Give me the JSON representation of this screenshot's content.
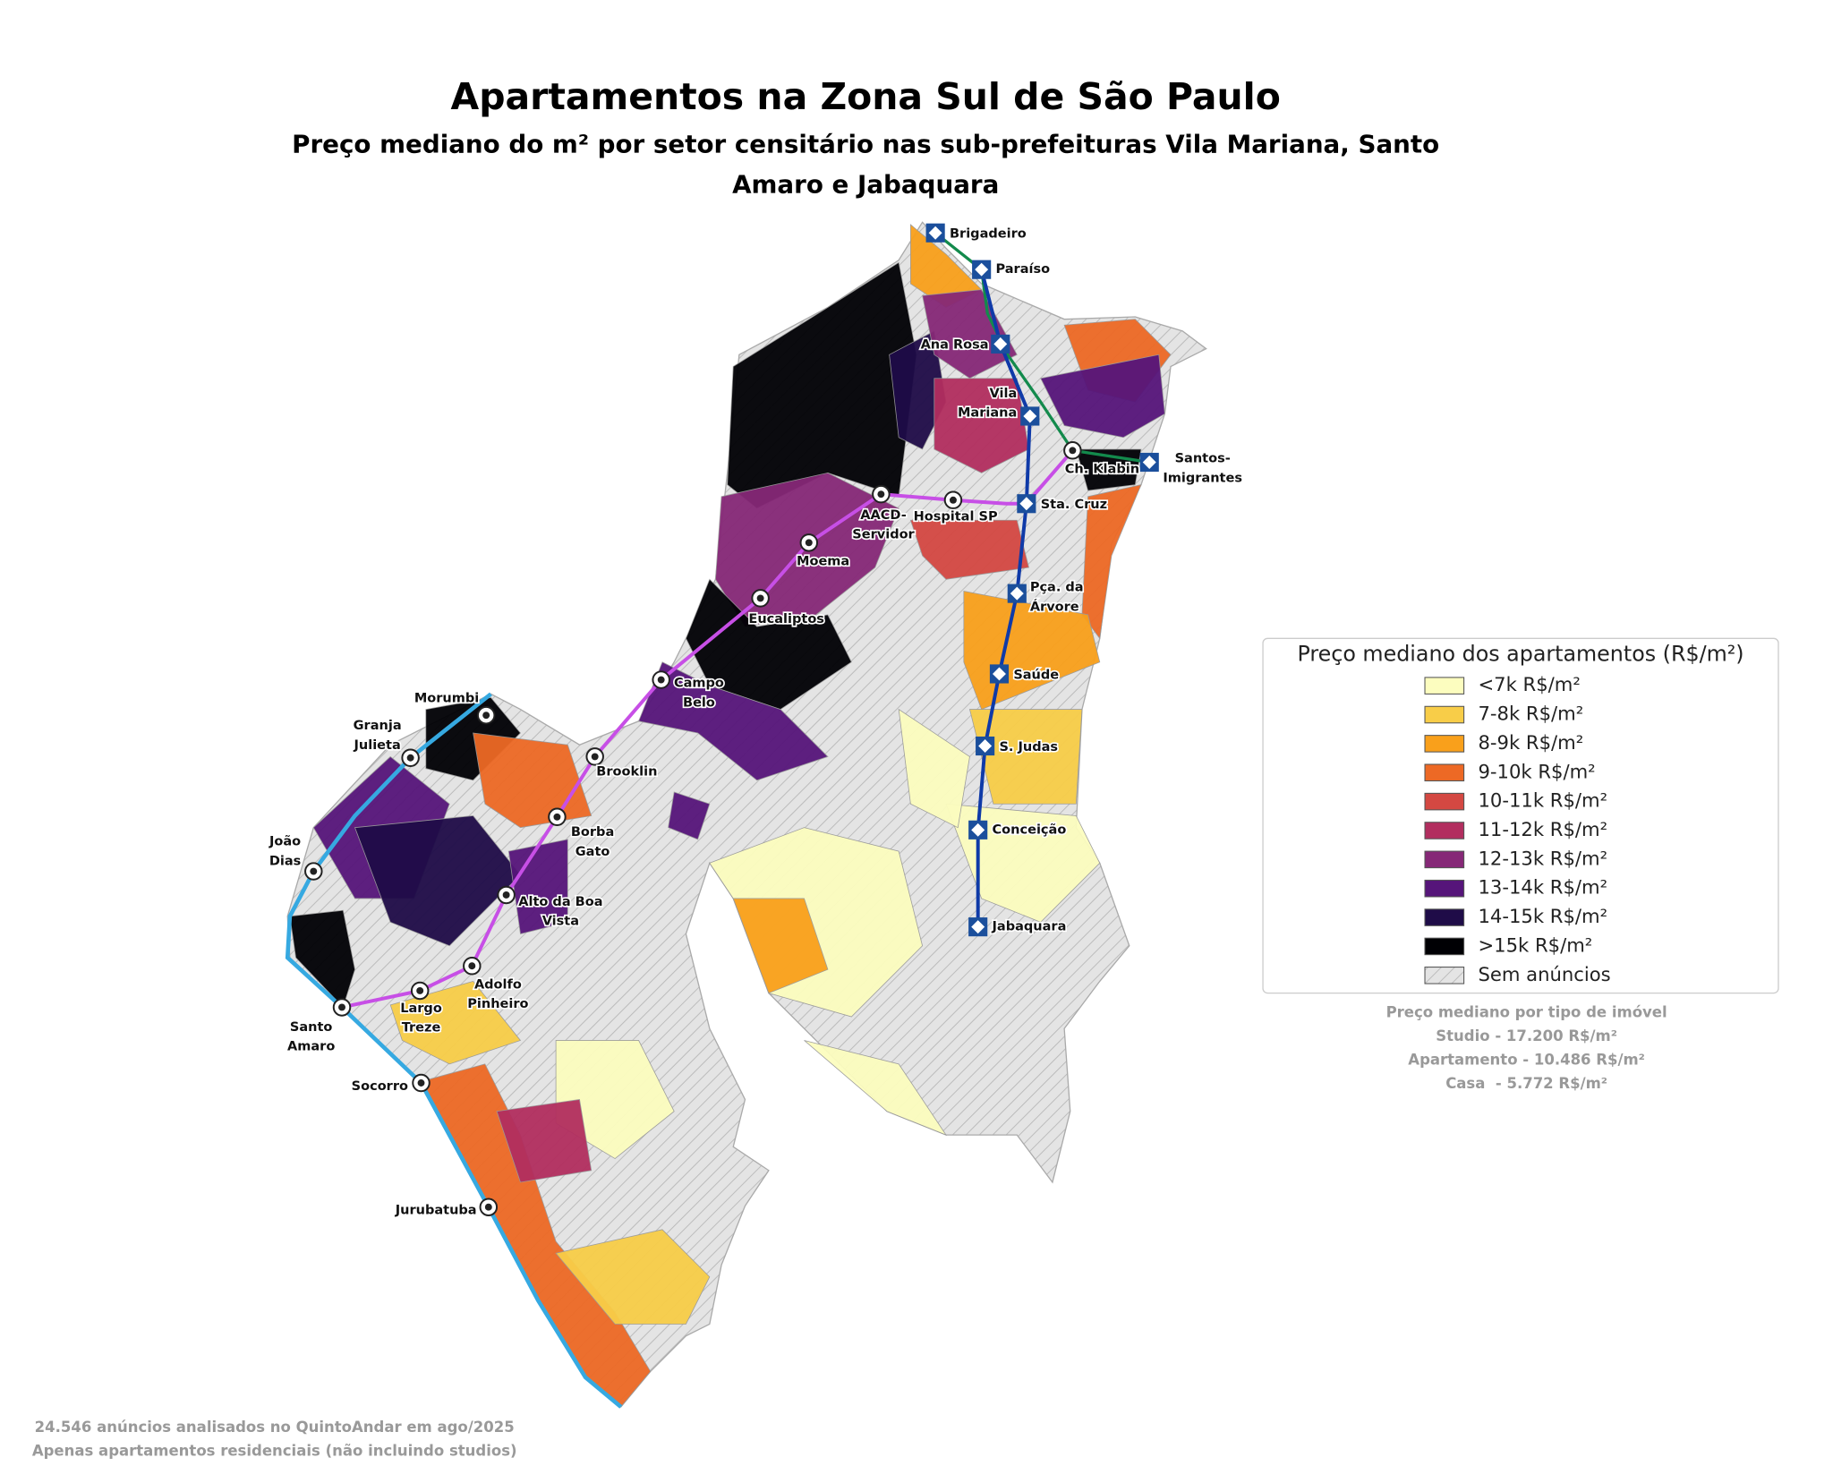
{
  "header": {
    "title": "Apartamentos na Zona Sul de São Paulo",
    "subtitle": [
      "Preço mediano do m² por setor censitário nas sub-prefeituras Vila Mariana, Santo",
      "Amaro e Jabaquara"
    ]
  },
  "stations": [
    {
      "label": [
        "Brigadeiro"
      ]
    },
    {
      "label": [
        "Paraíso"
      ]
    },
    {
      "label": [
        "Ana Rosa"
      ]
    },
    {
      "label": [
        "Vila",
        "Mariana"
      ]
    },
    {
      "label": [
        "Santos-",
        "Imigrantes"
      ]
    },
    {
      "label": [
        "Ch. Klabin"
      ]
    },
    {
      "label": [
        "Hospital SP"
      ]
    },
    {
      "label": [
        "AACD-",
        "Servidor"
      ]
    },
    {
      "label": [
        "Sta. Cruz"
      ]
    },
    {
      "label": [
        "Moema"
      ]
    },
    {
      "label": [
        "Eucaliptos"
      ]
    },
    {
      "label": [
        "Pça. da",
        "Árvore"
      ]
    },
    {
      "label": [
        "Campo",
        "Belo"
      ]
    },
    {
      "label": [
        "Saúde"
      ]
    },
    {
      "label": [
        "Morumbi"
      ]
    },
    {
      "label": [
        "Granja",
        "Julieta"
      ]
    },
    {
      "label": [
        "S. Judas"
      ]
    },
    {
      "label": [
        "Brooklin"
      ]
    },
    {
      "label": [
        "Borba",
        "Gato"
      ]
    },
    {
      "label": [
        "Conceição"
      ]
    },
    {
      "label": [
        "João",
        "Dias"
      ]
    },
    {
      "label": [
        "Alto da Boa",
        "Vista"
      ]
    },
    {
      "label": [
        "Jabaquara"
      ]
    },
    {
      "label": [
        "Adolfo",
        "Pinheiro"
      ]
    },
    {
      "label": [
        "Largo",
        "Treze"
      ]
    },
    {
      "label": [
        "Santo",
        "Amaro"
      ]
    },
    {
      "label": [
        "Socorro"
      ]
    },
    {
      "label": [
        "Jurubatuba"
      ]
    }
  ],
  "legend": {
    "title": "Preço mediano dos apartamentos (R$/m²)",
    "items": [
      {
        "label": "<7k R$/m²",
        "color": "#fcfdbf"
      },
      {
        "label": "7-8k R$/m²",
        "color": "#f8cd48"
      },
      {
        "label": "8-9k R$/m²",
        "color": "#f9a01b"
      },
      {
        "label": "9-10k R$/m²",
        "color": "#ed6925"
      },
      {
        "label": "10-11k R$/m²",
        "color": "#d44842"
      },
      {
        "label": "11-12k R$/m²",
        "color": "#b22e5f"
      },
      {
        "label": "12-13k R$/m²",
        "color": "#862877"
      },
      {
        "label": "13-14k R$/m²",
        "color": "#56157a"
      },
      {
        "label": "14-15k R$/m²",
        "color": "#1f0c48"
      },
      {
        "label": ">15k R$/m²",
        "color": "#000004"
      },
      {
        "label": "Sem anúncios",
        "color": "#dddddd"
      }
    ]
  },
  "note": {
    "title": "Preço mediano por tipo de imóvel",
    "lines": [
      "Studio - 17.200 R$/m²",
      "Apartamento - 10.486 R$/m²",
      "Casa  - 5.772 R$/m²"
    ]
  },
  "footer": [
    "24.546 anúncios analisados no QuintoAndar em ago/2025",
    "Apenas apartamentos residenciais (não incluindo studios)"
  ]
}
